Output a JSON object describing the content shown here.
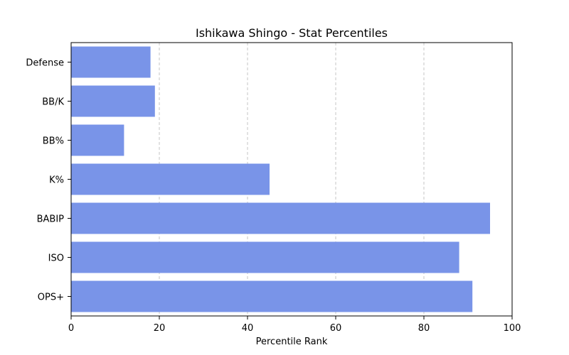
{
  "chart_data": {
    "type": "bar",
    "orientation": "horizontal",
    "title": "Ishikawa Shingo - Stat Percentiles",
    "xlabel": "Percentile Rank",
    "ylabel": "",
    "categories": [
      "Defense",
      "BB/K",
      "BB%",
      "K%",
      "BABIP",
      "ISO",
      "OPS+"
    ],
    "values": [
      18,
      19,
      12,
      45,
      95,
      88,
      91
    ],
    "xlim": [
      0,
      100
    ],
    "xticks": [
      0,
      20,
      40,
      60,
      80,
      100
    ],
    "grid": "x-dashed",
    "bar_color": "#7994e8"
  }
}
